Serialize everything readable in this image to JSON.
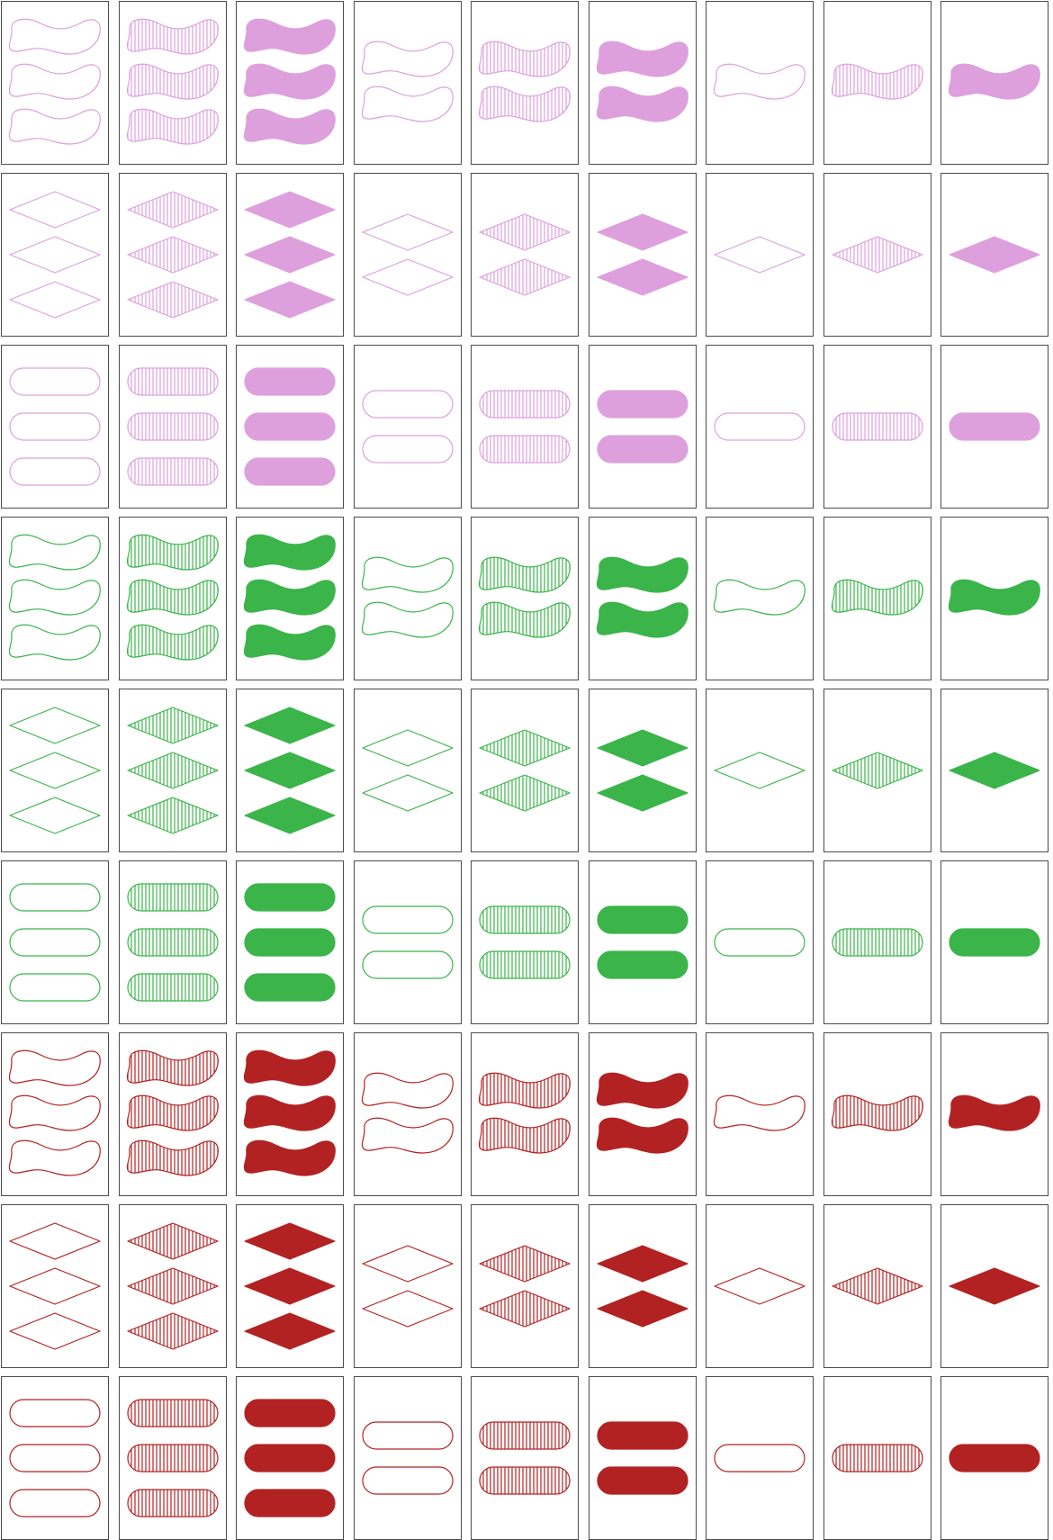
{
  "board": {
    "columns": 9,
    "rows": 9
  },
  "palette": {
    "purple": "#dda0dd",
    "green": "#3bb44a",
    "red": "#b22222"
  },
  "attributes": {
    "colors": [
      "purple",
      "green",
      "red"
    ],
    "shapes": [
      "squiggle",
      "diamond",
      "oval"
    ],
    "shadings": [
      "outline",
      "striped",
      "solid"
    ],
    "counts": [
      3,
      2,
      1
    ]
  },
  "row_order": [
    {
      "color": "purple",
      "shape": "squiggle"
    },
    {
      "color": "purple",
      "shape": "diamond"
    },
    {
      "color": "purple",
      "shape": "oval"
    },
    {
      "color": "green",
      "shape": "squiggle"
    },
    {
      "color": "green",
      "shape": "diamond"
    },
    {
      "color": "green",
      "shape": "oval"
    },
    {
      "color": "red",
      "shape": "squiggle"
    },
    {
      "color": "red",
      "shape": "diamond"
    },
    {
      "color": "red",
      "shape": "oval"
    }
  ],
  "column_order": [
    {
      "count": 3,
      "shading": "outline"
    },
    {
      "count": 3,
      "shading": "striped"
    },
    {
      "count": 3,
      "shading": "solid"
    },
    {
      "count": 2,
      "shading": "outline"
    },
    {
      "count": 2,
      "shading": "striped"
    },
    {
      "count": 2,
      "shading": "solid"
    },
    {
      "count": 1,
      "shading": "outline"
    },
    {
      "count": 1,
      "shading": "striped"
    },
    {
      "count": 1,
      "shading": "solid"
    }
  ]
}
